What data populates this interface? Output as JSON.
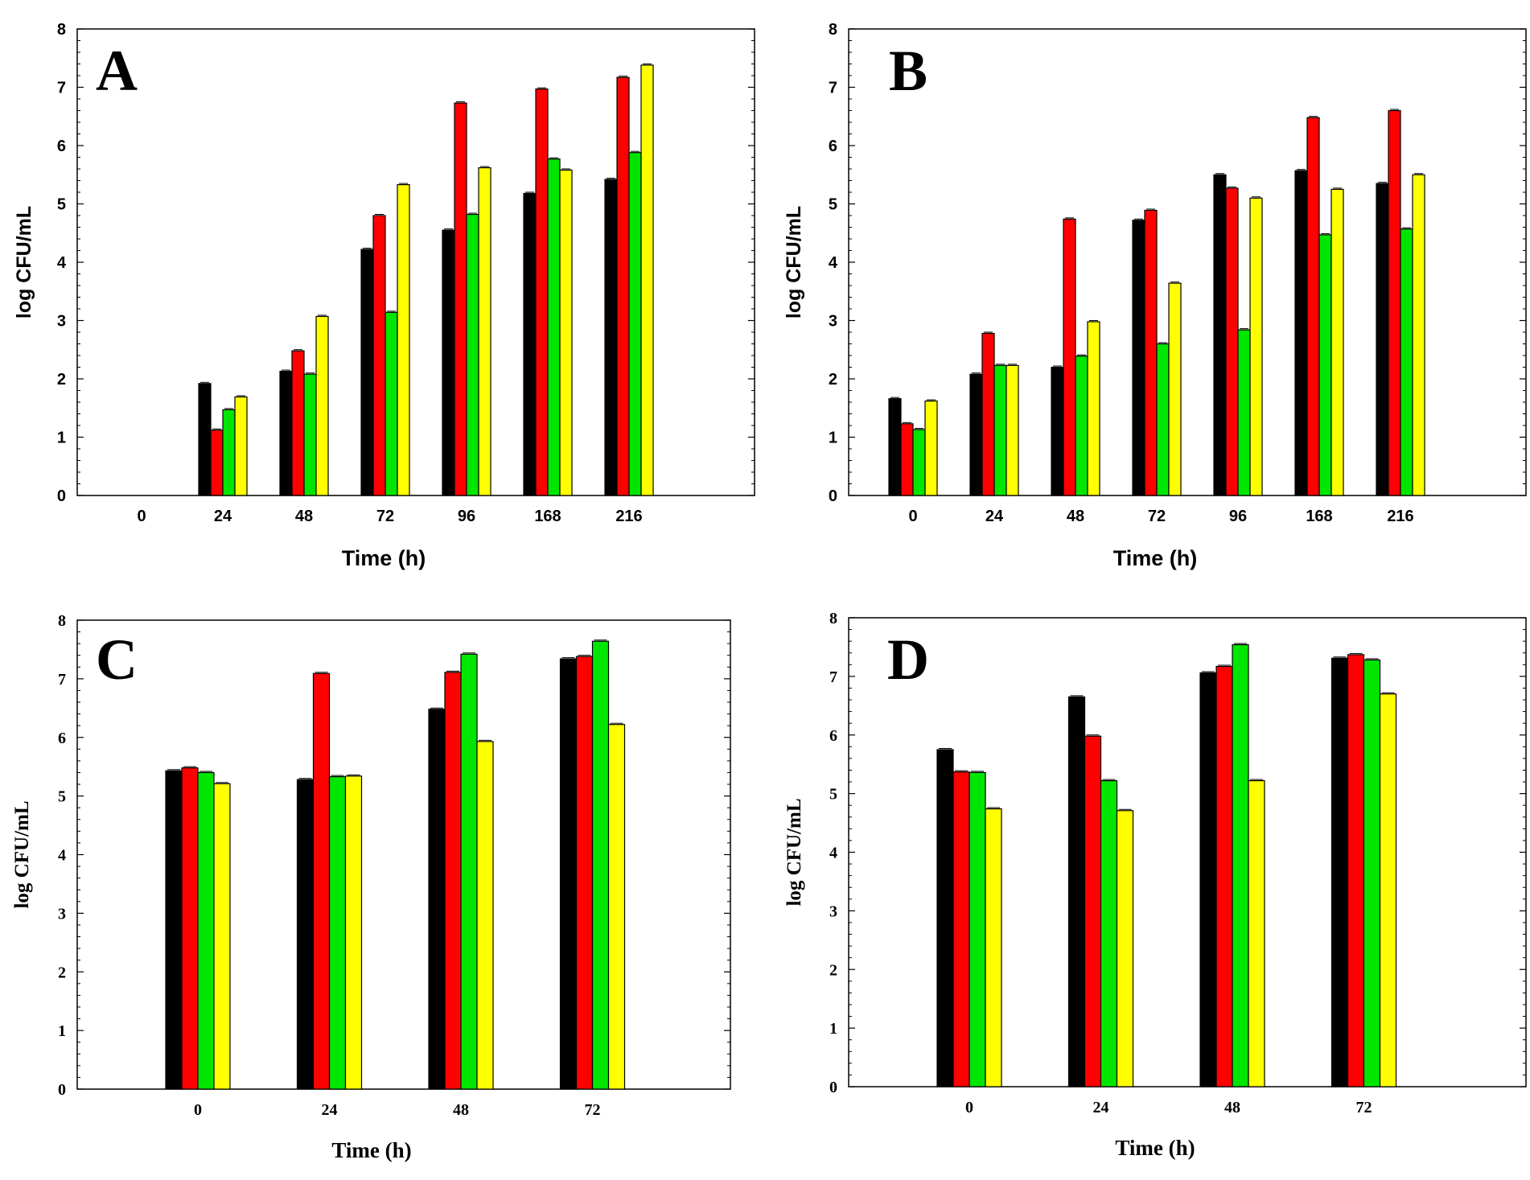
{
  "figure": {
    "series_colors": [
      "#000000",
      "#ff0000",
      "#00e600",
      "#ffff00"
    ]
  },
  "chart_data": [
    {
      "type": "bar",
      "panel_label": "A",
      "title": "",
      "xlabel": "Time (h)",
      "ylabel": "log CFU/mL",
      "ylim": [
        0,
        8
      ],
      "yticks": [
        "0",
        "1",
        "2",
        "3",
        "4",
        "5",
        "6",
        "7",
        "8"
      ],
      "categories": [
        "0",
        "24",
        "48",
        "72",
        "96",
        "168",
        "216"
      ],
      "grid": false,
      "font": "sans",
      "series": [
        {
          "name": "black",
          "color": "#000000",
          "values": [
            0,
            1.92,
            2.13,
            4.22,
            4.55,
            5.18,
            5.42
          ]
        },
        {
          "name": "red",
          "color": "#ff0000",
          "values": [
            0,
            1.12,
            2.48,
            4.8,
            6.73,
            6.97,
            7.17
          ]
        },
        {
          "name": "green",
          "color": "#00e600",
          "values": [
            0,
            1.47,
            2.08,
            3.14,
            4.82,
            5.77,
            5.88
          ]
        },
        {
          "name": "yellow",
          "color": "#ffff00",
          "values": [
            0,
            1.69,
            3.07,
            5.33,
            5.62,
            5.58,
            7.38
          ]
        }
      ]
    },
    {
      "type": "bar",
      "panel_label": "B",
      "title": "",
      "xlabel": "Time (h)",
      "ylabel": "log CFU/mL",
      "ylim": [
        0,
        8
      ],
      "yticks": [
        "0",
        "1",
        "2",
        "3",
        "4",
        "5",
        "6",
        "7",
        "8"
      ],
      "categories": [
        "0",
        "24",
        "48",
        "72",
        "96",
        "168",
        "216"
      ],
      "grid": false,
      "font": "sans",
      "series": [
        {
          "name": "black",
          "color": "#000000",
          "values": [
            1.66,
            2.08,
            2.2,
            4.72,
            5.5,
            5.57,
            5.35
          ]
        },
        {
          "name": "red",
          "color": "#ff0000",
          "values": [
            1.23,
            2.78,
            4.74,
            4.89,
            5.27,
            6.48,
            6.6
          ]
        },
        {
          "name": "green",
          "color": "#00e600",
          "values": [
            1.13,
            2.23,
            2.39,
            2.6,
            2.84,
            4.47,
            4.57
          ]
        },
        {
          "name": "yellow",
          "color": "#ffff00",
          "values": [
            1.62,
            2.23,
            2.98,
            3.64,
            5.1,
            5.25,
            5.5
          ]
        }
      ]
    },
    {
      "type": "bar",
      "panel_label": "C",
      "title": "",
      "xlabel": "Time (h)",
      "ylabel": "log CFU/mL",
      "ylim": [
        0,
        8
      ],
      "yticks": [
        "0",
        "1",
        "2",
        "3",
        "4",
        "5",
        "6",
        "7",
        "8"
      ],
      "categories": [
        "0",
        "24",
        "48",
        "72"
      ],
      "grid": false,
      "font": "serif",
      "series": [
        {
          "name": "black",
          "color": "#000000",
          "values": [
            5.43,
            5.28,
            6.48,
            7.34
          ]
        },
        {
          "name": "red",
          "color": "#ff0000",
          "values": [
            5.48,
            7.09,
            7.11,
            7.38
          ]
        },
        {
          "name": "green",
          "color": "#00e600",
          "values": [
            5.4,
            5.33,
            7.42,
            7.64
          ]
        },
        {
          "name": "yellow",
          "color": "#ffff00",
          "values": [
            5.21,
            5.34,
            5.93,
            6.22
          ]
        }
      ]
    },
    {
      "type": "bar",
      "panel_label": "D",
      "title": "",
      "xlabel": "Time (h)",
      "ylabel": "log CFU/mL",
      "ylim": [
        0,
        8
      ],
      "yticks": [
        "0",
        "1",
        "2",
        "3",
        "4",
        "5",
        "6",
        "7",
        "8"
      ],
      "categories": [
        "0",
        "24",
        "48",
        "72"
      ],
      "grid": false,
      "font": "serif",
      "series": [
        {
          "name": "black",
          "color": "#000000",
          "values": [
            5.75,
            6.65,
            7.06,
            7.31
          ]
        },
        {
          "name": "red",
          "color": "#ff0000",
          "values": [
            5.37,
            5.98,
            7.17,
            7.37
          ]
        },
        {
          "name": "green",
          "color": "#00e600",
          "values": [
            5.36,
            5.22,
            7.54,
            7.28
          ]
        },
        {
          "name": "yellow",
          "color": "#ffff00",
          "values": [
            4.74,
            4.71,
            5.22,
            6.7
          ]
        }
      ]
    }
  ]
}
